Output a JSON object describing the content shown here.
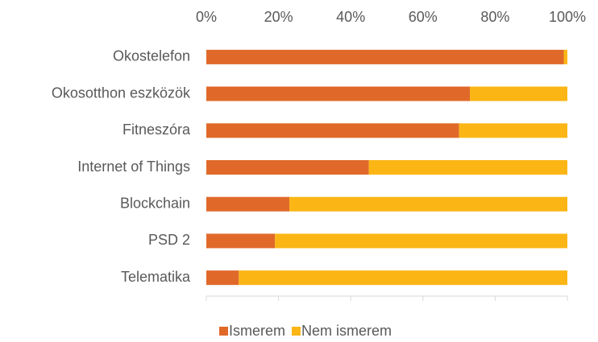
{
  "chart_data": {
    "type": "stacked_bar_horizontal",
    "categories": [
      "Okostelefon",
      "Okosotthon eszközök",
      "Fitneszóra",
      "Internet of Things",
      "Blockchain",
      "PSD 2",
      "Telematika"
    ],
    "series": [
      {
        "name": "Ismerem",
        "color": "#e0692a",
        "values": [
          99,
          73,
          70,
          45,
          23,
          19,
          9
        ]
      },
      {
        "name": "Nem ismerem",
        "color": "#fbb616",
        "values": [
          1,
          27,
          30,
          55,
          77,
          81,
          91
        ]
      }
    ],
    "xlim": [
      0,
      100
    ],
    "xticks": [
      {
        "value": 0,
        "label": "0%"
      },
      {
        "value": 20,
        "label": "20%"
      },
      {
        "value": 40,
        "label": "40%"
      },
      {
        "value": 60,
        "label": "60%"
      },
      {
        "value": 80,
        "label": "80%"
      },
      {
        "value": 100,
        "label": "100%"
      }
    ],
    "legend": "bottom"
  }
}
